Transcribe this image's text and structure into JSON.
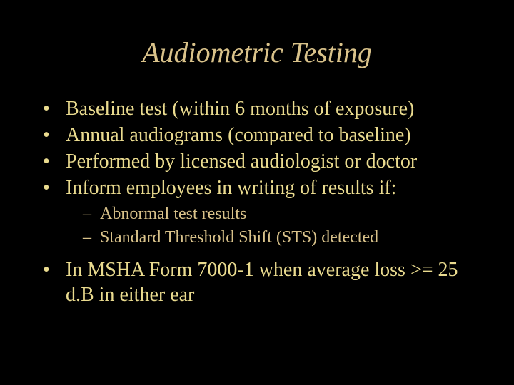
{
  "colors": {
    "background": "#000000",
    "title_color": "#d9c28a",
    "bullet_color": "#eadb8f",
    "sub_bullet_color": "#d9c28a"
  },
  "typography": {
    "font_family": "Times New Roman",
    "title_fontsize_pt": 40,
    "title_style": "italic",
    "bullet_fontsize_pt": 28,
    "sub_bullet_fontsize_pt": 24
  },
  "title": "Audiometric Testing",
  "bullets": [
    {
      "text": "Baseline test (within 6 months of exposure)"
    },
    {
      "text": "Annual audiograms (compared to baseline)"
    },
    {
      "text": "Performed by licensed audiologist or doctor"
    },
    {
      "text": "Inform employees in writing of results if:",
      "sub": [
        "Abnormal test results",
        "Standard Threshold Shift (STS) detected"
      ]
    },
    {
      "text": "In MSHA Form 7000-1 when average loss >= 25 d.B in either ear"
    }
  ]
}
